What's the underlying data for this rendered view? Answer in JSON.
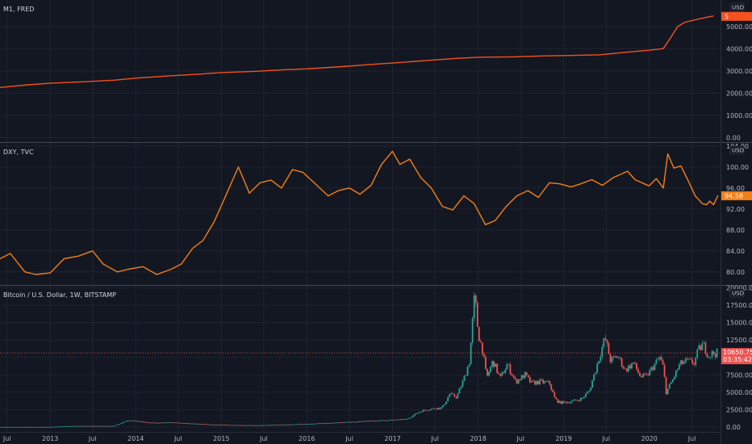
{
  "x_axis": {
    "labels": [
      "Jul",
      "2013",
      "Jul",
      "2014",
      "Jul",
      "2015",
      "Jul",
      "2016",
      "Jul",
      "2017",
      "Jul",
      "2018",
      "Jul",
      "2019",
      "Jul",
      "2020",
      "Jul"
    ],
    "dates": [
      "2012-07-01",
      "2013-01-01",
      "2013-07-01",
      "2014-01-01",
      "2014-07-01",
      "2015-01-01",
      "2015-07-01",
      "2016-01-01",
      "2016-07-01",
      "2017-01-01",
      "2017-07-01",
      "2018-01-01",
      "2018-07-01",
      "2019-01-01",
      "2019-07-01",
      "2020-01-01",
      "2020-07-01"
    ],
    "range": [
      "2012-06-01",
      "2020-10-31"
    ]
  },
  "chart_data": [
    {
      "type": "line",
      "title": "M1, FRED",
      "currency": "USD",
      "last_value_badge": "5",
      "color": "#f4511e",
      "ylim": [
        -200,
        6200
      ],
      "yticks": [
        "0.00",
        "1000.00",
        "2000.00",
        "3000.00",
        "4000.00",
        "5000.00"
      ],
      "ytick_values": [
        0,
        1000,
        2000,
        3000,
        4000,
        5000
      ],
      "grid": true,
      "x": [
        "2012-06-01",
        "2012-10-01",
        "2013-01-01",
        "2013-06-01",
        "2013-10-01",
        "2014-01-01",
        "2014-06-01",
        "2014-10-01",
        "2015-01-01",
        "2015-06-01",
        "2015-10-01",
        "2016-01-01",
        "2016-06-01",
        "2016-10-01",
        "2017-01-01",
        "2017-06-01",
        "2017-10-01",
        "2018-01-01",
        "2018-06-01",
        "2018-10-01",
        "2019-01-01",
        "2019-06-01",
        "2019-10-01",
        "2020-01-01",
        "2020-03-01",
        "2020-04-01",
        "2020-05-01",
        "2020-06-01",
        "2020-08-01",
        "2020-09-01",
        "2020-10-01"
      ],
      "values": [
        2260,
        2380,
        2450,
        2520,
        2590,
        2680,
        2790,
        2860,
        2930,
        2990,
        3060,
        3100,
        3200,
        3300,
        3360,
        3480,
        3570,
        3620,
        3640,
        3680,
        3700,
        3730,
        3850,
        3940,
        4010,
        4500,
        5000,
        5200,
        5350,
        5420,
        5480
      ]
    },
    {
      "type": "line",
      "title": "DXY, TVC",
      "currency": "USD",
      "last_value_badge": "94.58",
      "color": "#f57f17",
      "ylim": [
        77.5,
        104.6
      ],
      "yticks": [
        "80.00",
        "84.00",
        "88.00",
        "92.00",
        "96.00",
        "100.00",
        "104.00"
      ],
      "ytick_values": [
        80,
        84,
        88,
        92,
        96,
        100,
        104
      ],
      "grid": true,
      "x": [
        "2012-06-01",
        "2012-07-15",
        "2012-09-15",
        "2012-11-01",
        "2013-01-01",
        "2013-03-01",
        "2013-05-01",
        "2013-07-01",
        "2013-08-15",
        "2013-10-15",
        "2013-12-01",
        "2014-02-01",
        "2014-04-01",
        "2014-06-01",
        "2014-07-15",
        "2014-09-01",
        "2014-10-15",
        "2014-12-01",
        "2015-01-15",
        "2015-03-15",
        "2015-05-01",
        "2015-06-15",
        "2015-08-01",
        "2015-09-15",
        "2015-11-01",
        "2015-12-15",
        "2016-02-01",
        "2016-04-01",
        "2016-05-15",
        "2016-07-01",
        "2016-08-15",
        "2016-10-01",
        "2016-11-15",
        "2016-12-31",
        "2017-02-01",
        "2017-03-15",
        "2017-05-01",
        "2017-06-15",
        "2017-08-01",
        "2017-09-15",
        "2017-11-01",
        "2017-12-15",
        "2018-02-01",
        "2018-03-15",
        "2018-05-01",
        "2018-06-15",
        "2018-08-01",
        "2018-09-15",
        "2018-11-01",
        "2018-12-15",
        "2019-02-01",
        "2019-03-15",
        "2019-05-01",
        "2019-06-15",
        "2019-08-01",
        "2019-09-30",
        "2019-11-01",
        "2019-12-31",
        "2020-01-31",
        "2020-03-01",
        "2020-03-20",
        "2020-04-15",
        "2020-05-15",
        "2020-06-15",
        "2020-07-15",
        "2020-08-15",
        "2020-09-01",
        "2020-09-15",
        "2020-10-01",
        "2020-10-20"
      ],
      "values": [
        82.5,
        83.5,
        80.0,
        79.5,
        79.8,
        82.5,
        83.0,
        84.0,
        81.5,
        80.0,
        80.5,
        81.0,
        79.5,
        80.5,
        81.5,
        84.5,
        86.0,
        89.5,
        94.0,
        100.0,
        95.0,
        97.0,
        97.5,
        96.0,
        99.5,
        99.0,
        97.0,
        94.5,
        95.5,
        96.0,
        94.8,
        96.5,
        100.5,
        103.0,
        100.5,
        101.5,
        98.0,
        96.0,
        92.5,
        91.8,
        94.5,
        93.0,
        89.0,
        89.8,
        92.5,
        94.5,
        95.5,
        94.2,
        97.0,
        96.8,
        96.2,
        96.8,
        97.6,
        96.5,
        98.0,
        99.2,
        97.6,
        96.4,
        97.8,
        96.0,
        102.5,
        99.8,
        100.2,
        97.4,
        94.5,
        93.0,
        92.8,
        93.5,
        92.8,
        94.58
      ]
    },
    {
      "type": "candlestick",
      "title": "Bitcoin / U.S. Dollar, 1W, BITSTAMP",
      "currency": "USD",
      "last_value_badge": "10650.75",
      "countdown_badge": "03:35:42",
      "up_color": "#26a69a",
      "down_color": "#ef5350",
      "ylim": [
        -700,
        20300
      ],
      "yticks": [
        "0.00",
        "2500.00",
        "5000.00",
        "7500.00",
        "10000.00",
        "12500.00",
        "15000.00",
        "17500.00",
        "20000.00"
      ],
      "ytick_values": [
        0,
        2500,
        5000,
        7500,
        10000,
        12500,
        15000,
        17500,
        20000
      ],
      "price_line": 10650.75,
      "grid": true,
      "x": [
        "2012-06-01",
        "2013-01-01",
        "2013-04-01",
        "2013-10-01",
        "2013-12-01",
        "2014-03-01",
        "2014-06-01",
        "2014-12-01",
        "2015-06-01",
        "2016-01-01",
        "2016-06-01",
        "2016-12-01",
        "2017-03-01",
        "2017-05-01",
        "2017-06-15",
        "2017-08-01",
        "2017-09-01",
        "2017-10-01",
        "2017-11-01",
        "2017-11-25",
        "2017-12-17",
        "2018-01-01",
        "2018-01-20",
        "2018-02-06",
        "2018-03-05",
        "2018-04-05",
        "2018-05-05",
        "2018-06-10",
        "2018-07-20",
        "2018-08-15",
        "2018-09-20",
        "2018-11-01",
        "2018-11-25",
        "2018-12-15",
        "2019-01-20",
        "2019-02-20",
        "2019-03-20",
        "2019-04-20",
        "2019-05-15",
        "2019-06-10",
        "2019-06-26",
        "2019-07-20",
        "2019-08-20",
        "2019-09-20",
        "2019-10-25",
        "2019-11-25",
        "2019-12-20",
        "2020-01-20",
        "2020-02-15",
        "2020-03-01",
        "2020-03-13",
        "2020-04-10",
        "2020-05-10",
        "2020-06-10",
        "2020-07-10",
        "2020-07-28",
        "2020-08-17",
        "2020-09-10",
        "2020-10-01",
        "2020-10-20"
      ],
      "values": [
        7,
        13,
        140,
        150,
        1000,
        600,
        640,
        330,
        240,
        430,
        670,
        960,
        1100,
        2300,
        2600,
        2800,
        4700,
        4300,
        6900,
        9500,
        19000,
        13500,
        11000,
        7000,
        9500,
        7000,
        9000,
        6500,
        7500,
        6300,
        6500,
        6300,
        4000,
        3500,
        3600,
        3800,
        4100,
        5200,
        8000,
        11000,
        12800,
        9500,
        10200,
        8200,
        9200,
        7200,
        7300,
        8800,
        10000,
        8500,
        5000,
        6800,
        9000,
        9500,
        9200,
        11000,
        11900,
        10300,
        10600,
        10650.75
      ]
    }
  ]
}
